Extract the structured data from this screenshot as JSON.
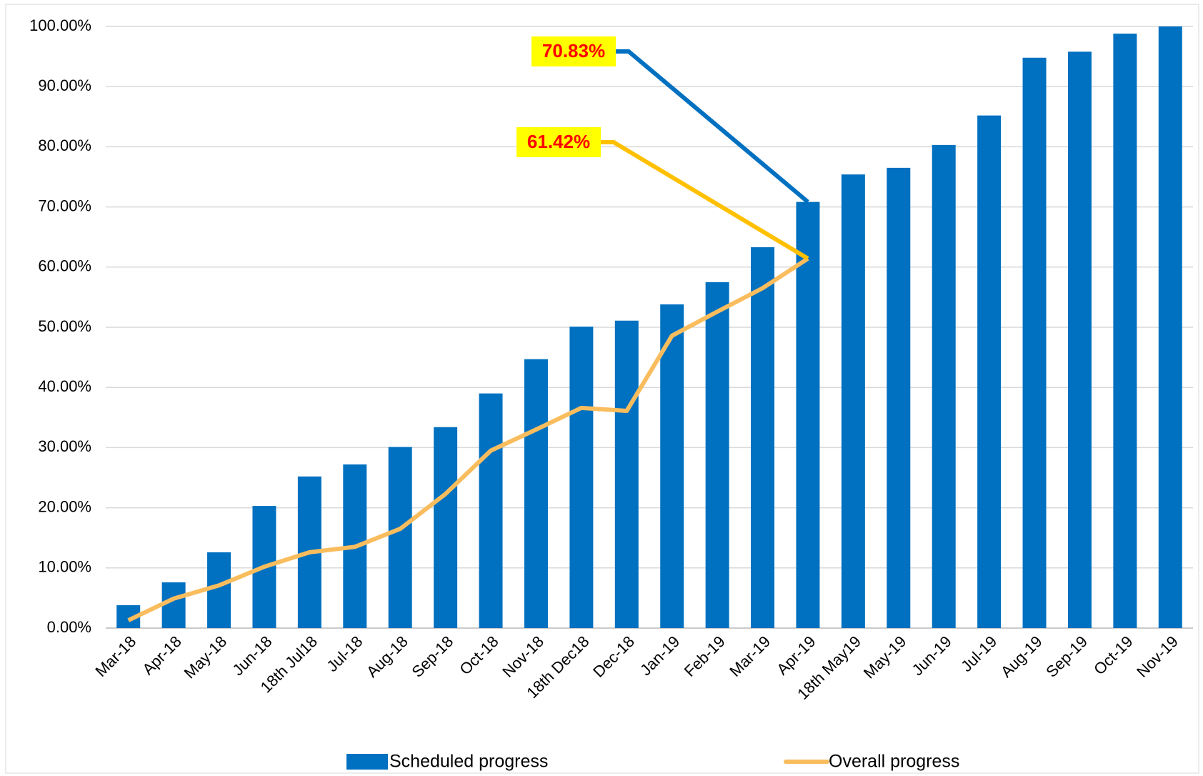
{
  "chart_data": {
    "type": "bar_line",
    "categories": [
      "Mar-18",
      "Apr-18",
      "May-18",
      "Jun-18",
      "18th Jul18",
      "Jul-18",
      "Aug-18",
      "Sep-18",
      "Oct-18",
      "Nov-18",
      "18th Dec18",
      "Dec-18",
      "Jan-19",
      "Feb-19",
      "Mar-19",
      "Apr-19",
      "18th May19",
      "May-19",
      "Jun-19",
      "Jul-19",
      "Aug-19",
      "Sep-19",
      "Oct-19",
      "Nov-19"
    ],
    "series": [
      {
        "name": "Scheduled progress",
        "type": "bar",
        "color": "#0070c0",
        "values": [
          3.8,
          7.6,
          12.6,
          20.3,
          25.2,
          27.2,
          30.1,
          33.4,
          39.0,
          44.7,
          50.1,
          51.1,
          53.8,
          57.5,
          63.3,
          70.83,
          75.4,
          76.5,
          80.3,
          85.2,
          94.8,
          95.8,
          98.8,
          100
        ],
        "value_labels": [
          null,
          null,
          null,
          null,
          null,
          null,
          null,
          null,
          null,
          null,
          null,
          null,
          null,
          null,
          null,
          "70.83%",
          null,
          null,
          null,
          null,
          null,
          null,
          null,
          null
        ]
      },
      {
        "name": "Overall progress",
        "type": "line",
        "color": "#f9bd5e",
        "values": [
          1.3,
          4.9,
          7.1,
          10.2,
          12.6,
          13.5,
          16.5,
          22.3,
          29.5,
          33.0,
          36.6,
          36.1,
          48.6,
          52.6,
          56.5,
          61.42,
          null,
          null,
          null,
          null,
          null,
          null,
          null,
          null
        ],
        "value_labels": [
          null,
          null,
          null,
          null,
          null,
          null,
          null,
          null,
          null,
          null,
          null,
          null,
          null,
          null,
          null,
          "61.42%",
          null,
          null,
          null,
          null,
          null,
          null,
          null,
          null
        ]
      }
    ],
    "ylim": [
      0,
      100
    ],
    "yticks": [
      {
        "value": 0,
        "label": "0.00%"
      },
      {
        "value": 10,
        "label": "10.00%"
      },
      {
        "value": 20,
        "label": "20.00%"
      },
      {
        "value": 30,
        "label": "30.00%"
      },
      {
        "value": 40,
        "label": "40.00%"
      },
      {
        "value": 50,
        "label": "50.00%"
      },
      {
        "value": 60,
        "label": "60.00%"
      },
      {
        "value": 70,
        "label": "70.00%"
      },
      {
        "value": 80,
        "label": "80.00%"
      },
      {
        "value": 90,
        "label": "90.00%"
      },
      {
        "value": 100,
        "label": "100.00%"
      }
    ],
    "grid": true,
    "legend": "bottom"
  }
}
